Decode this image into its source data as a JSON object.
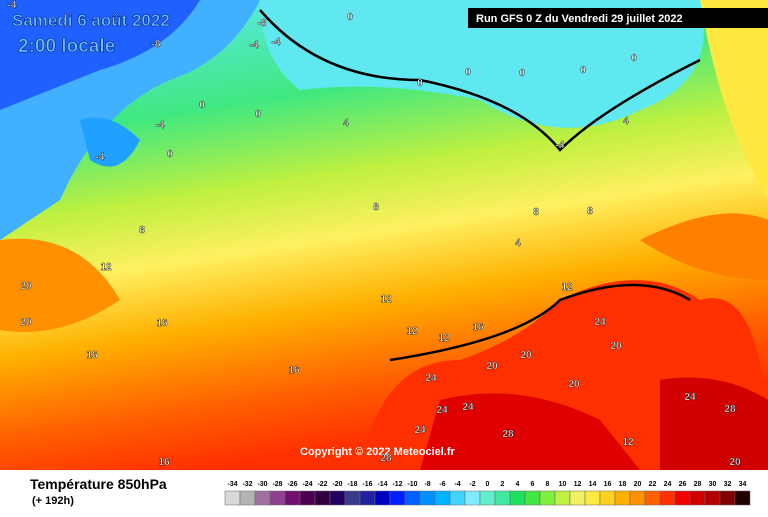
{
  "header": {
    "date": "Samedi 6 août 2022",
    "time": "2:00 locale",
    "run": "Run GFS 0 Z du Vendredi 29 juillet 2022",
    "copyright": "Copyright © 2022 Meteociel.fr"
  },
  "footer": {
    "title": "Température 850hPa",
    "lead": "(+ 192h)"
  },
  "legend": {
    "values": [
      -34,
      -32,
      -30,
      -28,
      -26,
      -24,
      -22,
      -20,
      -18,
      -16,
      -14,
      -12,
      -10,
      -8,
      -6,
      -4,
      -2,
      0,
      2,
      4,
      6,
      8,
      10,
      12,
      14,
      16,
      18,
      20,
      22,
      24,
      26,
      28,
      30,
      32,
      34
    ],
    "colors": [
      "#d9d9d9",
      "#b4b4b4",
      "#a070a0",
      "#904090",
      "#701070",
      "#500050",
      "#300040",
      "#200060",
      "#3a3a8a",
      "#2020a0",
      "#0000c0",
      "#0020ff",
      "#0060ff",
      "#0090ff",
      "#00b4ff",
      "#40d4ff",
      "#80ecff",
      "#60f0d0",
      "#40e8a0",
      "#20e060",
      "#40e840",
      "#80f040",
      "#c0f040",
      "#f0f060",
      "#ffe840",
      "#ffd020",
      "#ffb000",
      "#ff9000",
      "#ff6000",
      "#ff3000",
      "#f00000",
      "#d00000",
      "#b00000",
      "#800000",
      "#200000"
    ]
  },
  "map_labels": [
    "-4",
    "-8",
    "-8",
    "0",
    "-4",
    "-4",
    "-4",
    "-4",
    "0",
    "0",
    "0",
    "0",
    "0",
    "0",
    "0",
    "0",
    "4",
    "4",
    "4",
    "8",
    "8",
    "8",
    "8",
    "12",
    "12",
    "12",
    "12",
    "12",
    "16",
    "16",
    "16",
    "20",
    "20",
    "20",
    "20",
    "20",
    "20",
    "24",
    "24",
    "24",
    "24",
    "24",
    "24",
    "28",
    "28",
    "28",
    "20",
    "12",
    "16",
    "-4",
    "16"
  ]
}
